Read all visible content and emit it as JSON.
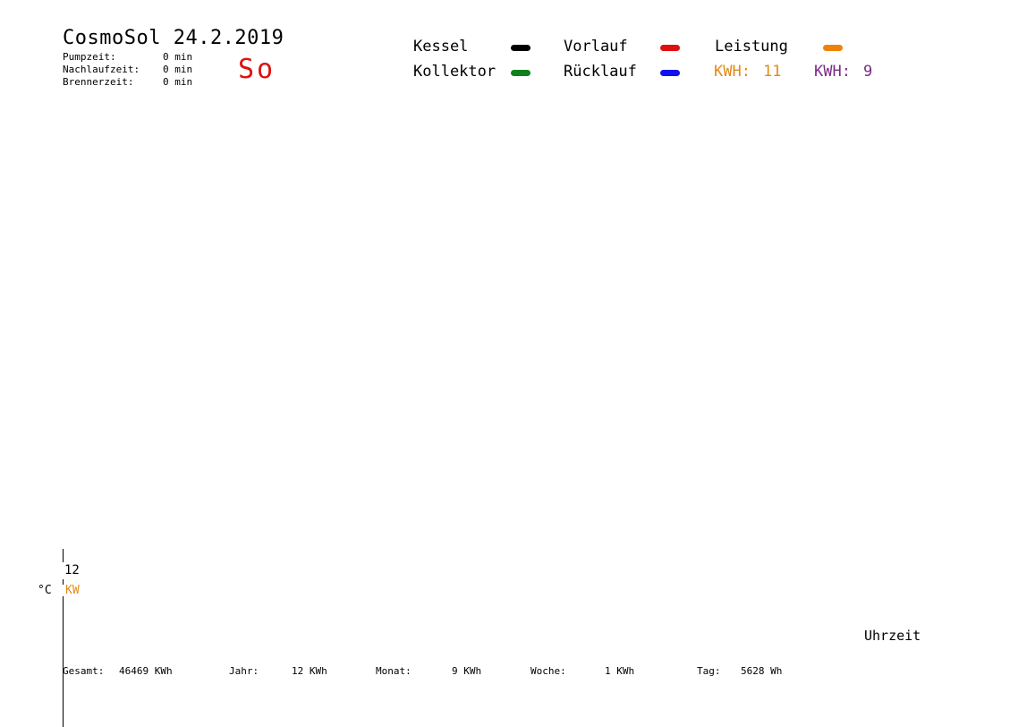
{
  "header": {
    "title": "CosmoSol 24.2.2019",
    "day": "So",
    "stats": [
      {
        "label": "Pumpzeit:",
        "value": "0 min"
      },
      {
        "label": "Nachlaufzeit:",
        "value": "0 min"
      },
      {
        "label": "Brennerzeit:",
        "value": "0 min"
      }
    ]
  },
  "legend": [
    {
      "label": "Kessel",
      "color": "#000000"
    },
    {
      "label": "Vorlauf",
      "color": "#e01010"
    },
    {
      "label": "Leistung",
      "color": "#f0820a"
    },
    {
      "label": "Kollektor",
      "color": "#11801a"
    },
    {
      "label": "Rücklauf",
      "color": "#1010f0"
    }
  ],
  "kwh_readouts": [
    {
      "label": "KWH:",
      "value": "11",
      "color": "#e38a18"
    },
    {
      "label": "KWH:",
      "value": "9",
      "color": "#7a2a86"
    }
  ],
  "chart_data": {
    "type": "line",
    "title": "CosmoSol 24.2.2019",
    "xlabel": "Uhrzeit",
    "ylabel": "°C",
    "y2label": "KW",
    "y_ticks": [
      "12"
    ],
    "series": []
  },
  "footer": {
    "gesamt": {
      "label": "Gesamt:",
      "value": "46469 KWh"
    },
    "jahr": {
      "label": "Jahr:",
      "value": "12 KWh"
    },
    "monat": {
      "label": "Monat:",
      "value": "9 KWh"
    },
    "woche": {
      "label": "Woche:",
      "value": "1 KWh"
    },
    "tag": {
      "label": "Tag:",
      "value": "5628 Wh"
    }
  },
  "colors": {
    "day": "#e01010",
    "kw_unit": "#e38a18"
  }
}
